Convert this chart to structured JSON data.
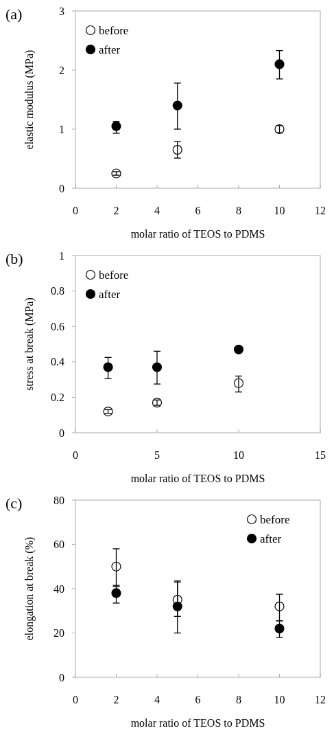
{
  "chart_data": [
    {
      "type": "scatter",
      "title": "(a)",
      "xlabel": "molar ratio of TEOS to PDMS",
      "ylabel": "elastic modulus (MPa)",
      "xlim": [
        0,
        12
      ],
      "xticks": [
        0,
        2,
        4,
        6,
        8,
        10,
        12
      ],
      "ylim": [
        0,
        3
      ],
      "yticks": [
        0,
        1,
        2,
        3
      ],
      "legend": "top left",
      "marker": "circle",
      "grid": false,
      "series": [
        {
          "name": "before",
          "color": "#ffffff",
          "x": [
            2,
            5,
            10
          ],
          "values": [
            0.25,
            0.65,
            1.0
          ],
          "errors": [
            0.03,
            [
              0.51,
              0.79
            ],
            0.06
          ]
        },
        {
          "name": "after",
          "color": "#000000",
          "x": [
            2,
            5,
            10
          ],
          "values": [
            1.05,
            1.4,
            2.1
          ],
          "errors": [
            [
              0.93,
              1.13
            ],
            [
              1.0,
              1.78
            ],
            [
              1.85,
              2.33
            ]
          ]
        }
      ]
    },
    {
      "type": "scatter",
      "title": "(b)",
      "xlabel": "molar ratio of TEOS to PDMS",
      "ylabel": "stress at break (MPa)",
      "xlim": [
        0,
        15
      ],
      "xticks": [
        0,
        5,
        10,
        15
      ],
      "ylim": [
        0,
        1
      ],
      "yticks": [
        0,
        0.2,
        0.4,
        0.6,
        0.8,
        1
      ],
      "legend": "top left",
      "marker": "circle",
      "grid": false,
      "series": [
        {
          "name": "before",
          "color": "#ffffff",
          "x": [
            2,
            5,
            10
          ],
          "values": [
            0.12,
            0.17,
            0.28
          ],
          "errors": [
            0.01,
            0.015,
            [
              0.23,
              0.32
            ]
          ]
        },
        {
          "name": "after",
          "color": "#000000",
          "x": [
            2,
            5,
            10
          ],
          "values": [
            0.37,
            0.37,
            0.47
          ],
          "errors": [
            [
              0.305,
              0.425
            ],
            [
              0.275,
              0.46
            ],
            null
          ]
        }
      ]
    },
    {
      "type": "scatter",
      "title": "(c)",
      "xlabel": "molar ratio of TEOS to PDMS",
      "ylabel": "elongation at break (%)",
      "xlim": [
        0,
        12
      ],
      "xticks": [
        0,
        2,
        4,
        6,
        8,
        10,
        12
      ],
      "ylim": [
        0,
        80
      ],
      "yticks": [
        0,
        20,
        40,
        60,
        80
      ],
      "legend": "top right",
      "marker": "circle",
      "grid": false,
      "series": [
        {
          "name": "before",
          "color": "#ffffff",
          "x": [
            2,
            5,
            10
          ],
          "values": [
            50,
            35,
            32
          ],
          "errors": [
            [
              41,
              58
            ],
            [
              27.5,
              43.5
            ],
            [
              25.5,
              37.5
            ]
          ]
        },
        {
          "name": "after",
          "color": "#000000",
          "x": [
            2,
            5,
            10
          ],
          "values": [
            38,
            32,
            22
          ],
          "errors": [
            [
              33.5,
              41.5
            ],
            [
              20,
              43
            ],
            [
              18,
              25.5
            ]
          ]
        }
      ]
    }
  ]
}
